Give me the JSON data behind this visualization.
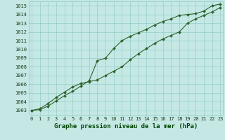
{
  "title": "Graphe pression niveau de la mer (hPa)",
  "x_values": [
    0,
    1,
    2,
    3,
    4,
    5,
    6,
    7,
    8,
    9,
    10,
    11,
    12,
    13,
    14,
    15,
    16,
    17,
    18,
    19,
    20,
    21,
    22,
    23
  ],
  "x_labels": [
    "0",
    "1",
    "2",
    "3",
    "4",
    "5",
    "6",
    "7",
    "8",
    "9",
    "10",
    "11",
    "12",
    "13",
    "14",
    "15",
    "16",
    "17",
    "18",
    "19",
    "20",
    "21",
    "22",
    "23"
  ],
  "line1_y": [
    1003.0,
    1003.2,
    1003.8,
    1004.5,
    1005.1,
    1005.7,
    1006.1,
    1006.3,
    1006.5,
    1007.0,
    1007.5,
    1008.0,
    1008.8,
    1009.5,
    1010.1,
    1010.7,
    1011.2,
    1011.6,
    1012.0,
    1013.0,
    1013.5,
    1013.9,
    1014.3,
    1014.8
  ],
  "line2_y": [
    1003.0,
    1003.1,
    1003.5,
    1004.1,
    1004.7,
    1005.2,
    1005.8,
    1006.4,
    1008.7,
    1009.0,
    1010.1,
    1011.0,
    1011.5,
    1011.9,
    1012.3,
    1012.8,
    1013.2,
    1013.5,
    1013.9,
    1014.0,
    1014.1,
    1014.4,
    1015.0,
    1015.2
  ],
  "line_color": "#2d622d",
  "marker_color": "#2d622d",
  "bg_color": "#c5e8e5",
  "grid_color": "#88c8c0",
  "text_color": "#1a3a1a",
  "xlabel_color": "#004400",
  "ylim_min": 1002.5,
  "ylim_max": 1015.5,
  "xlim_min": -0.3,
  "xlim_max": 23.3,
  "yticks": [
    1003,
    1004,
    1005,
    1006,
    1007,
    1008,
    1009,
    1010,
    1011,
    1012,
    1013,
    1014,
    1015
  ],
  "tick_fontsize": 5,
  "title_fontsize": 6.5,
  "linewidth": 0.8,
  "markersize": 2.0
}
